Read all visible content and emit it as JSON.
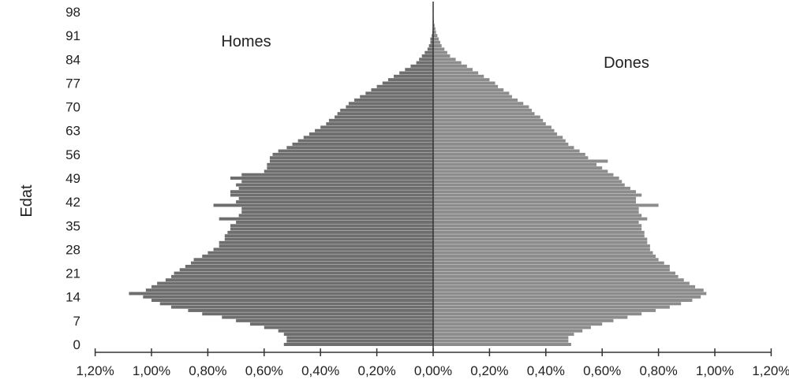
{
  "chart_data": {
    "type": "bar",
    "orientation": "horizontal",
    "subtype": "population-pyramid",
    "title": "",
    "ylabel": "Edat",
    "xlabel": "",
    "y_tick_labels": [
      "0",
      "7",
      "14",
      "21",
      "28",
      "35",
      "42",
      "49",
      "56",
      "63",
      "70",
      "77",
      "84",
      "91",
      "98"
    ],
    "x_tick_labels": [
      "1,20%",
      "1,00%",
      "0,80%",
      "0,60%",
      "0,40%",
      "0,20%",
      "0,00%",
      "0,20%",
      "0,40%",
      "0,60%",
      "0,80%",
      "1,00%",
      "1,20%"
    ],
    "xlim": [
      -1.2,
      1.2
    ],
    "ylim": [
      0,
      99
    ],
    "series": [
      {
        "name": "Homes",
        "side": "left",
        "color": "#6e6e6e",
        "values": [
          0.53,
          0.52,
          0.52,
          0.53,
          0.55,
          0.6,
          0.65,
          0.7,
          0.75,
          0.82,
          0.87,
          0.93,
          0.97,
          1.0,
          1.03,
          1.08,
          1.02,
          1.0,
          0.98,
          0.95,
          0.93,
          0.92,
          0.9,
          0.88,
          0.86,
          0.85,
          0.82,
          0.8,
          0.78,
          0.76,
          0.76,
          0.74,
          0.74,
          0.73,
          0.72,
          0.72,
          0.7,
          0.76,
          0.69,
          0.68,
          0.68,
          0.78,
          0.7,
          0.69,
          0.72,
          0.72,
          0.69,
          0.7,
          0.68,
          0.72,
          0.68,
          0.6,
          0.59,
          0.59,
          0.58,
          0.58,
          0.57,
          0.55,
          0.52,
          0.5,
          0.48,
          0.46,
          0.44,
          0.42,
          0.4,
          0.38,
          0.37,
          0.35,
          0.34,
          0.33,
          0.31,
          0.3,
          0.28,
          0.26,
          0.24,
          0.22,
          0.2,
          0.18,
          0.16,
          0.14,
          0.12,
          0.1,
          0.08,
          0.06,
          0.05,
          0.04,
          0.03,
          0.02,
          0.015,
          0.01,
          0.01,
          0.005,
          0.003,
          0.002,
          0.001,
          0.001,
          0.001,
          0.001,
          0.001
        ]
      },
      {
        "name": "Dones",
        "side": "right",
        "color": "#8c8c8c",
        "values": [
          0.49,
          0.48,
          0.48,
          0.5,
          0.53,
          0.56,
          0.6,
          0.64,
          0.69,
          0.74,
          0.79,
          0.84,
          0.88,
          0.92,
          0.95,
          0.97,
          0.96,
          0.93,
          0.91,
          0.89,
          0.87,
          0.86,
          0.84,
          0.84,
          0.82,
          0.8,
          0.79,
          0.78,
          0.77,
          0.77,
          0.76,
          0.76,
          0.75,
          0.75,
          0.74,
          0.74,
          0.73,
          0.76,
          0.74,
          0.73,
          0.73,
          0.8,
          0.72,
          0.72,
          0.74,
          0.72,
          0.7,
          0.68,
          0.67,
          0.66,
          0.64,
          0.62,
          0.6,
          0.58,
          0.62,
          0.55,
          0.54,
          0.52,
          0.5,
          0.48,
          0.47,
          0.46,
          0.44,
          0.43,
          0.42,
          0.4,
          0.39,
          0.38,
          0.36,
          0.35,
          0.34,
          0.32,
          0.3,
          0.28,
          0.27,
          0.25,
          0.23,
          0.22,
          0.2,
          0.18,
          0.16,
          0.14,
          0.12,
          0.1,
          0.08,
          0.06,
          0.05,
          0.04,
          0.03,
          0.025,
          0.02,
          0.015,
          0.01,
          0.008,
          0.005,
          0.003,
          0.002,
          0.001,
          0.001
        ]
      }
    ],
    "grid": false,
    "legend": "inside-top"
  }
}
